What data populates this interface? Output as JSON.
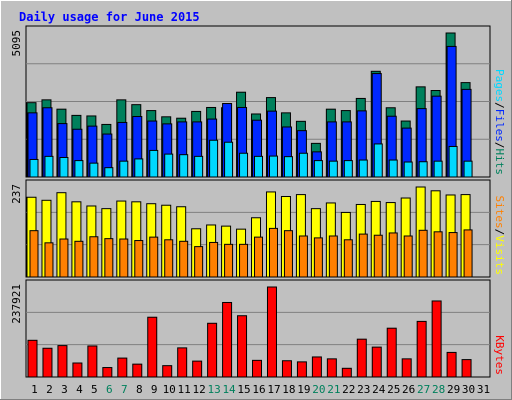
{
  "chart_data": {
    "type": "bar",
    "title": "Daily usage for June 2015",
    "categories": [
      "1",
      "2",
      "3",
      "4",
      "5",
      "6",
      "7",
      "8",
      "9",
      "10",
      "11",
      "12",
      "13",
      "14",
      "15",
      "16",
      "17",
      "18",
      "19",
      "20",
      "21",
      "22",
      "23",
      "24",
      "25",
      "26",
      "27",
      "28",
      "29",
      "30",
      "31"
    ],
    "weekend_days": [
      "6",
      "7",
      "13",
      "14",
      "20",
      "21",
      "27",
      "28"
    ],
    "panels": [
      {
        "id": "requests",
        "ymax_label": "5095",
        "ymax": 5095,
        "labels": [
          "Pages",
          "Files",
          "Hits"
        ],
        "series": [
          {
            "name": "Hits",
            "color": "#00805c",
            "values": [
              2630,
              2730,
              2400,
              2180,
              2160,
              1860,
              2730,
              2560,
              2350,
              2130,
              2080,
              2320,
              2460,
              2450,
              3000,
              2230,
              2810,
              2270,
              1970,
              1190,
              2400,
              2350,
              2780,
              3740,
              2450,
              1980,
              3190,
              3060,
              5095,
              3340,
              0
            ]
          },
          {
            "name": "Files",
            "color": "#0028ff",
            "values": [
              2270,
              2450,
              1890,
              1690,
              1800,
              1520,
              1930,
              2140,
              1980,
              1880,
              1950,
              1950,
              2050,
              2600,
              2460,
              2010,
              2330,
              1770,
              1640,
              890,
              1950,
              1950,
              2340,
              3660,
              2150,
              1730,
              2420,
              2860,
              4620,
              3100,
              0
            ]
          },
          {
            "name": "Pages",
            "color": "#00d8ff",
            "values": [
              620,
              730,
              690,
              580,
              490,
              330,
              560,
              640,
              940,
              810,
              790,
              730,
              1300,
              1230,
              840,
              730,
              740,
              720,
              840,
              580,
              560,
              580,
              600,
              1170,
              600,
              530,
              540,
              560,
              1080,
              560,
              0
            ]
          }
        ]
      },
      {
        "id": "visitors",
        "ymax_label": "237",
        "ymax": 237,
        "labels": [
          "Sites",
          "Visits"
        ],
        "series": [
          {
            "name": "Visits",
            "color": "#ffff00",
            "values": [
              210,
              202,
              222,
              198,
              187,
              180,
              200,
              198,
              193,
              189,
              185,
              127,
              137,
              134,
              126,
              156,
              224,
              212,
              217,
              180,
              195,
              170,
              191,
              199,
              196,
              208,
              237,
              227,
              216,
              217,
              0
            ]
          },
          {
            "name": "Sites",
            "color": "#ff8000",
            "values": [
              122,
              90,
              100,
              94,
              106,
              101,
              100,
              96,
              105,
              98,
              94,
              80,
              91,
              86,
              86,
              105,
              128,
              122,
              108,
              103,
              108,
              98,
              113,
              110,
              116,
              108,
              123,
              119,
              117,
              124,
              0
            ]
          }
        ]
      },
      {
        "id": "kbytes",
        "ymax_label": "237921",
        "ymax": 237921,
        "labels": [
          "KBytes"
        ],
        "series": [
          {
            "name": "KBytes",
            "color": "#ff0000",
            "values": [
              97000,
              76000,
              83000,
              37000,
              82000,
              25000,
              50000,
              34000,
              158000,
              30000,
              77000,
              42000,
              142000,
              197000,
              162000,
              44000,
              237921,
              43000,
              40000,
              53000,
              48000,
              23000,
              100000,
              79000,
              129000,
              48000,
              147000,
              201000,
              65000,
              46000,
              0
            ]
          }
        ]
      }
    ]
  }
}
